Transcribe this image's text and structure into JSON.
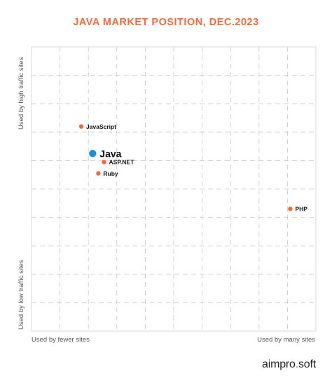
{
  "title": "JAVA MARKET POSITION, DEC.2023",
  "logo": {
    "part1": "aimpro",
    "sep": ".",
    "part2": "soft"
  },
  "colors": {
    "accent": "#f26a3d",
    "highlight": "#1e8fd9",
    "grid": "#c8c8c8",
    "axis": "#555555"
  },
  "chart_data": {
    "type": "scatter",
    "title": "JAVA MARKET POSITION, DEC.2023",
    "x_axis": {
      "low_label": "Used by fewer sites",
      "high_label": "Used by many sites"
    },
    "y_axis": {
      "low_label": "Used by low traffic sites",
      "high_label": "Used by high traffic sites"
    },
    "grid": true,
    "xlim": [
      0,
      10
    ],
    "ylim": [
      0,
      10
    ],
    "points": [
      {
        "label": "JavaScript",
        "x": 1.75,
        "y": 7.2,
        "highlight": false
      },
      {
        "label": "Java",
        "x": 2.15,
        "y": 6.25,
        "highlight": true
      },
      {
        "label": "ASP.NET",
        "x": 2.55,
        "y": 5.95,
        "highlight": false
      },
      {
        "label": "Ruby",
        "x": 2.35,
        "y": 5.55,
        "highlight": false
      },
      {
        "label": "PHP",
        "x": 9.1,
        "y": 4.3,
        "highlight": false
      }
    ]
  }
}
